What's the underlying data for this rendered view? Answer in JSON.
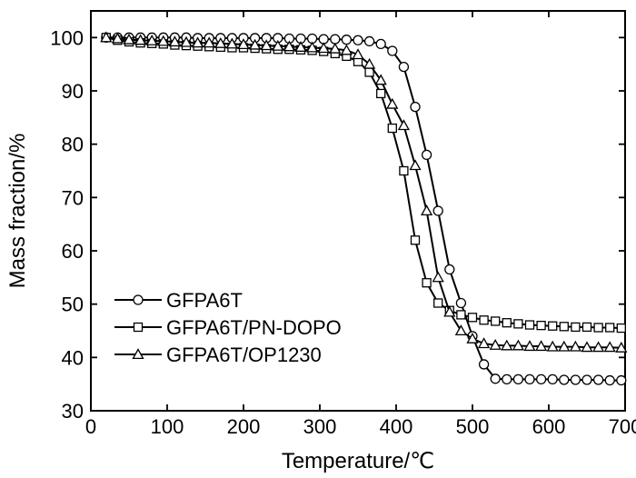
{
  "chart_data": {
    "type": "line",
    "title": "",
    "xlabel": "Temperature/℃",
    "ylabel": "Mass fraction/%",
    "xlim": [
      0,
      700
    ],
    "ylim": [
      30,
      105
    ],
    "xticks": [
      0,
      100,
      200,
      300,
      400,
      500,
      600,
      700
    ],
    "yticks": [
      30,
      40,
      50,
      60,
      70,
      80,
      90,
      100
    ],
    "xtick_labels": [
      "0",
      "100",
      "200",
      "300",
      "400",
      "500",
      "600",
      "700"
    ],
    "ytick_labels": [
      "30",
      "40",
      "50",
      "60",
      "70",
      "80",
      "90",
      "100"
    ],
    "grid": false,
    "legend_position": "bottom-left",
    "series": [
      {
        "name": "GFPA6T",
        "marker": "circle",
        "x": [
          20,
          35,
          50,
          65,
          80,
          95,
          110,
          125,
          140,
          155,
          170,
          185,
          200,
          215,
          230,
          245,
          260,
          275,
          290,
          305,
          320,
          335,
          350,
          365,
          380,
          395,
          410,
          425,
          440,
          455,
          470,
          485,
          500,
          515,
          530,
          545,
          560,
          575,
          590,
          605,
          620,
          635,
          650,
          665,
          680,
          695
        ],
        "y": [
          100,
          100,
          100,
          100,
          100,
          100,
          100,
          100,
          99.9,
          99.9,
          99.9,
          99.9,
          99.9,
          99.9,
          99.9,
          99.9,
          99.8,
          99.8,
          99.8,
          99.7,
          99.7,
          99.6,
          99.5,
          99.3,
          98.8,
          97.5,
          94.5,
          87,
          78,
          67.5,
          56.5,
          50.2,
          44,
          38.7,
          36,
          35.9,
          35.9,
          35.9,
          35.9,
          35.9,
          35.8,
          35.8,
          35.8,
          35.8,
          35.7,
          35.7
        ]
      },
      {
        "name": "GFPA6T/PN-DOPO",
        "marker": "square",
        "x": [
          20,
          35,
          50,
          65,
          80,
          95,
          110,
          125,
          140,
          155,
          170,
          185,
          200,
          215,
          230,
          245,
          260,
          275,
          290,
          305,
          320,
          335,
          350,
          365,
          380,
          395,
          410,
          425,
          440,
          455,
          470,
          485,
          500,
          515,
          530,
          545,
          560,
          575,
          590,
          605,
          620,
          635,
          650,
          665,
          680,
          695
        ],
        "y": [
          100,
          99.5,
          99.2,
          99,
          98.9,
          98.8,
          98.6,
          98.5,
          98.4,
          98.3,
          98.2,
          98.1,
          98.1,
          98,
          97.9,
          97.8,
          97.8,
          97.7,
          97.6,
          97.4,
          97,
          96.5,
          95.5,
          93.5,
          89.5,
          83,
          75,
          62,
          54,
          50.2,
          48.8,
          48,
          47.5,
          47,
          46.8,
          46.5,
          46.3,
          46.1,
          46,
          45.9,
          45.8,
          45.7,
          45.7,
          45.6,
          45.6,
          45.5
        ]
      },
      {
        "name": "GFPA6T/OP1230",
        "marker": "triangle",
        "x": [
          20,
          35,
          50,
          65,
          80,
          95,
          110,
          125,
          140,
          155,
          170,
          185,
          200,
          215,
          230,
          245,
          260,
          275,
          290,
          305,
          320,
          335,
          350,
          365,
          380,
          395,
          410,
          425,
          440,
          455,
          470,
          485,
          500,
          515,
          530,
          545,
          560,
          575,
          590,
          605,
          620,
          635,
          650,
          665,
          680,
          695
        ],
        "y": [
          100,
          99.8,
          99.6,
          99.5,
          99.4,
          99.3,
          99.2,
          99.1,
          99,
          99,
          98.9,
          98.8,
          98.7,
          98.6,
          98.5,
          98.4,
          98.3,
          98.2,
          98.1,
          98,
          97.9,
          97.6,
          96.8,
          95,
          92,
          87.5,
          83.5,
          76,
          67.5,
          55,
          48.5,
          45,
          43.5,
          42.6,
          42.3,
          42.2,
          42.2,
          42.1,
          42.1,
          42,
          42,
          42,
          41.9,
          41.9,
          41.9,
          41.8
        ]
      }
    ]
  }
}
